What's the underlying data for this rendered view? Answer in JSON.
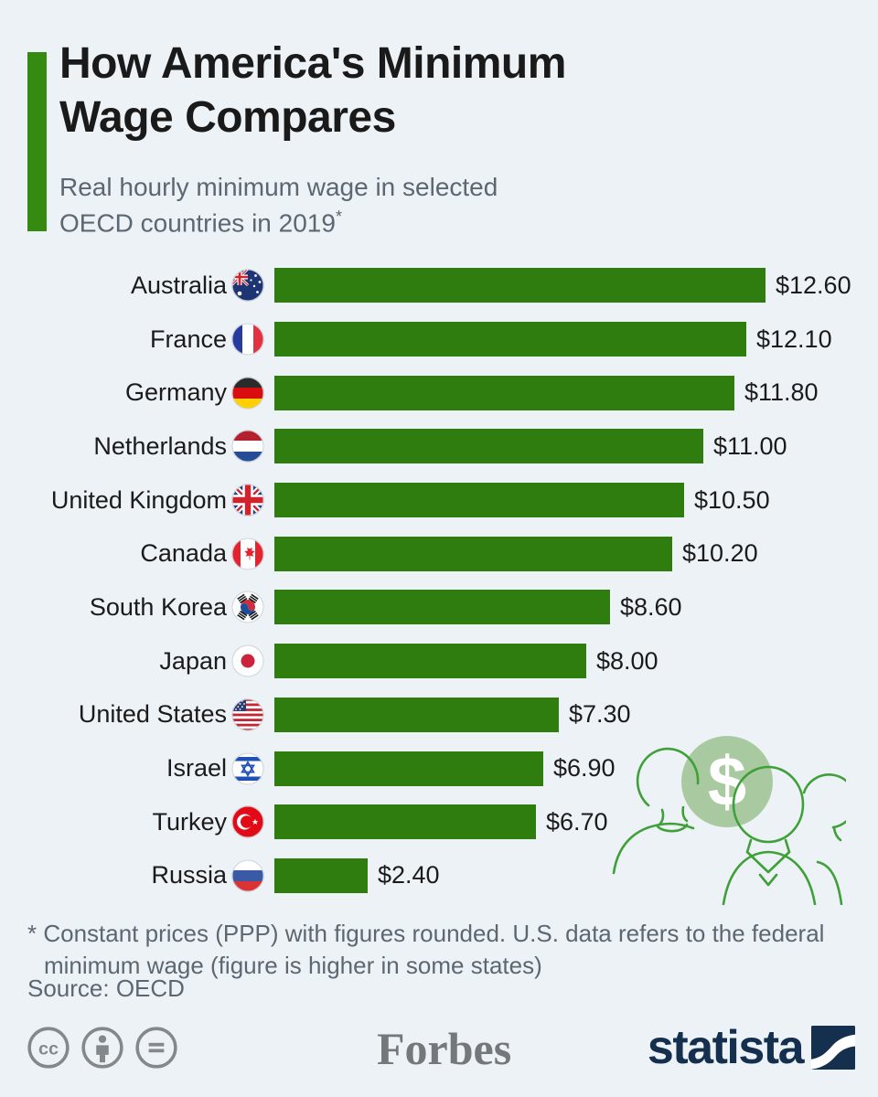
{
  "header": {
    "title_line1": "How America's Minimum",
    "title_line2": "Wage Compares",
    "subtitle_line1": "Real hourly minimum wage in selected",
    "subtitle_line2": "OECD countries in 2019",
    "footnote_marker": "*"
  },
  "chart_data": {
    "type": "bar",
    "orientation": "horizontal",
    "title": "How America's Minimum Wage Compares",
    "subtitle": "Real hourly minimum wage in selected OECD countries in 2019*",
    "unit": "$",
    "categories": [
      "Australia",
      "France",
      "Germany",
      "Netherlands",
      "United Kingdom",
      "Canada",
      "South Korea",
      "Japan",
      "United States",
      "Israel",
      "Turkey",
      "Russia"
    ],
    "values": [
      12.6,
      12.1,
      11.8,
      11.0,
      10.5,
      10.2,
      8.6,
      8.0,
      7.3,
      6.9,
      6.7,
      2.4
    ],
    "value_labels": [
      "$12.60",
      "$12.10",
      "$11.80",
      "$11.00",
      "$10.50",
      "$10.20",
      "$8.60",
      "$8.00",
      "$7.30",
      "$6.90",
      "$6.70",
      "$2.40"
    ],
    "flag_icons": [
      "australia",
      "france",
      "germany",
      "netherlands",
      "united-kingdom",
      "canada",
      "south-korea",
      "japan",
      "united-states",
      "israel",
      "turkey",
      "russia"
    ],
    "flag_codes": [
      "au",
      "fr",
      "de",
      "nl",
      "gb",
      "ca",
      "kr",
      "jp",
      "us",
      "il",
      "tr",
      "ru"
    ],
    "xlim": [
      0,
      12.6
    ],
    "grid": false,
    "legend": false,
    "bar_color": "#2e7d0e"
  },
  "footnote": {
    "line1": "* Constant prices (PPP) with figures rounded. U.S. data refers to the federal",
    "line2": "minimum wage (figure is higher in some states)",
    "source": "Source: OECD"
  },
  "footer": {
    "license_icons": [
      "cc-icon",
      "attribution-icon",
      "no-derivatives-icon"
    ],
    "license_cc_text": "cc",
    "publisher": "Forbes",
    "brand": "statista"
  },
  "colors": {
    "background": "#edf2f6",
    "accent_green": "#358a12",
    "bar_green": "#2e7d0e",
    "title": "#1a1a1a",
    "subtitle_gray": "#5d6771",
    "statista_navy": "#152f4e",
    "forbes_gray": "#75787b",
    "license_gray": "#85888b",
    "illustration_green": "#3fa039",
    "illustration_circle": "#a9caa0"
  }
}
